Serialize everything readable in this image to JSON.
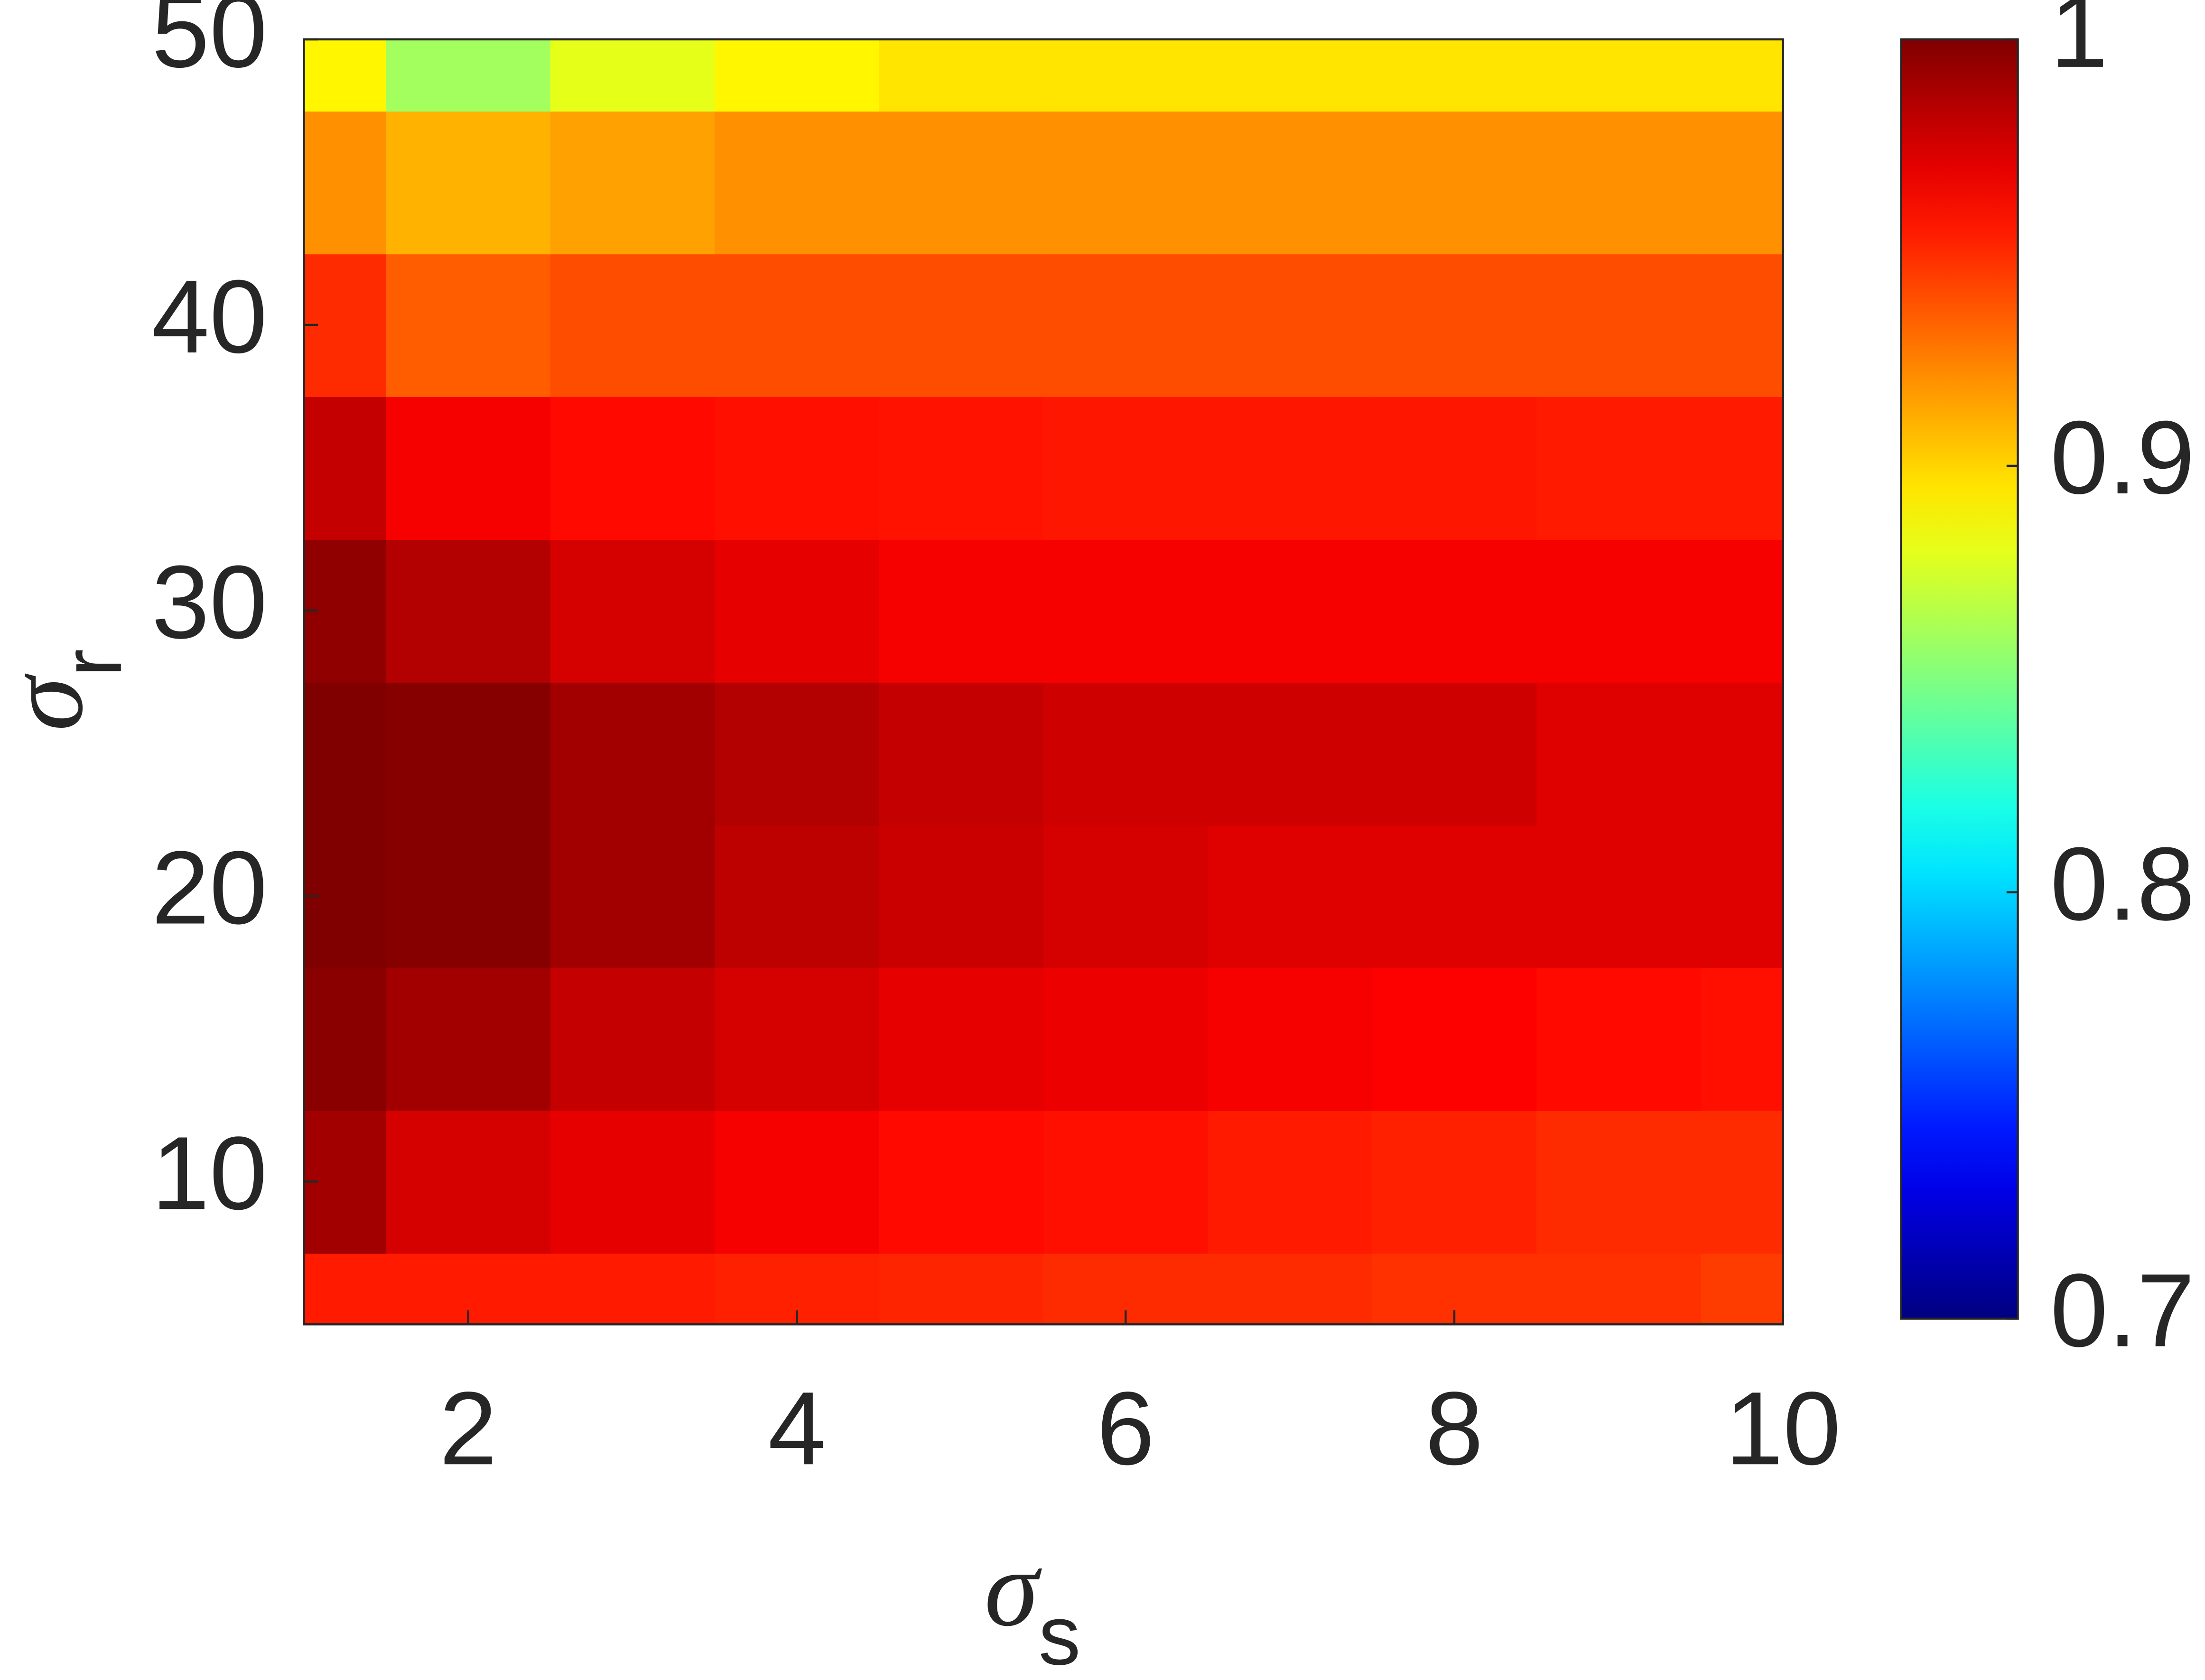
{
  "chart_data": {
    "type": "heatmap",
    "x_label": "σ",
    "x_label_sub": "s",
    "y_label": "σ",
    "y_label_sub": "r",
    "x": [
      1,
      2,
      3,
      4,
      5,
      6,
      7,
      8,
      9,
      10
    ],
    "y": [
      5,
      10,
      15,
      20,
      25,
      30,
      35,
      40,
      45,
      50
    ],
    "z": [
      [
        0.955,
        0.955,
        0.955,
        0.953,
        0.952,
        0.95,
        0.95,
        0.948,
        0.948,
        0.945
      ],
      [
        0.99,
        0.975,
        0.97,
        0.965,
        0.96,
        0.958,
        0.955,
        0.953,
        0.95,
        0.95
      ],
      [
        0.997,
        0.99,
        0.98,
        0.975,
        0.97,
        0.968,
        0.965,
        0.963,
        0.96,
        0.958
      ],
      [
        1.0,
        0.998,
        0.99,
        0.982,
        0.978,
        0.975,
        0.972,
        0.972,
        0.972,
        0.972
      ],
      [
        1.0,
        0.998,
        0.99,
        0.985,
        0.98,
        0.977,
        0.977,
        0.977,
        0.972,
        0.972
      ],
      [
        0.995,
        0.985,
        0.975,
        0.97,
        0.965,
        0.965,
        0.965,
        0.965,
        0.965,
        0.965
      ],
      [
        0.98,
        0.965,
        0.96,
        0.958,
        0.957,
        0.956,
        0.956,
        0.956,
        0.955,
        0.955
      ],
      [
        0.95,
        0.935,
        0.94,
        0.94,
        0.94,
        0.94,
        0.94,
        0.94,
        0.94,
        0.94
      ],
      [
        0.92,
        0.91,
        0.915,
        0.92,
        0.92,
        0.92,
        0.92,
        0.92,
        0.92,
        0.92
      ],
      [
        0.89,
        0.86,
        0.88,
        0.89,
        0.895,
        0.895,
        0.895,
        0.895,
        0.895,
        0.895
      ]
    ],
    "xlim": [
      1,
      10
    ],
    "ylim": [
      5,
      50
    ],
    "xticks": [
      2,
      4,
      6,
      8,
      10
    ],
    "yticks": [
      10,
      20,
      30,
      40,
      50
    ],
    "colormap": "jet",
    "clim": [
      0.7,
      1
    ],
    "cticks": [
      0.7,
      0.8,
      0.9,
      1
    ]
  }
}
